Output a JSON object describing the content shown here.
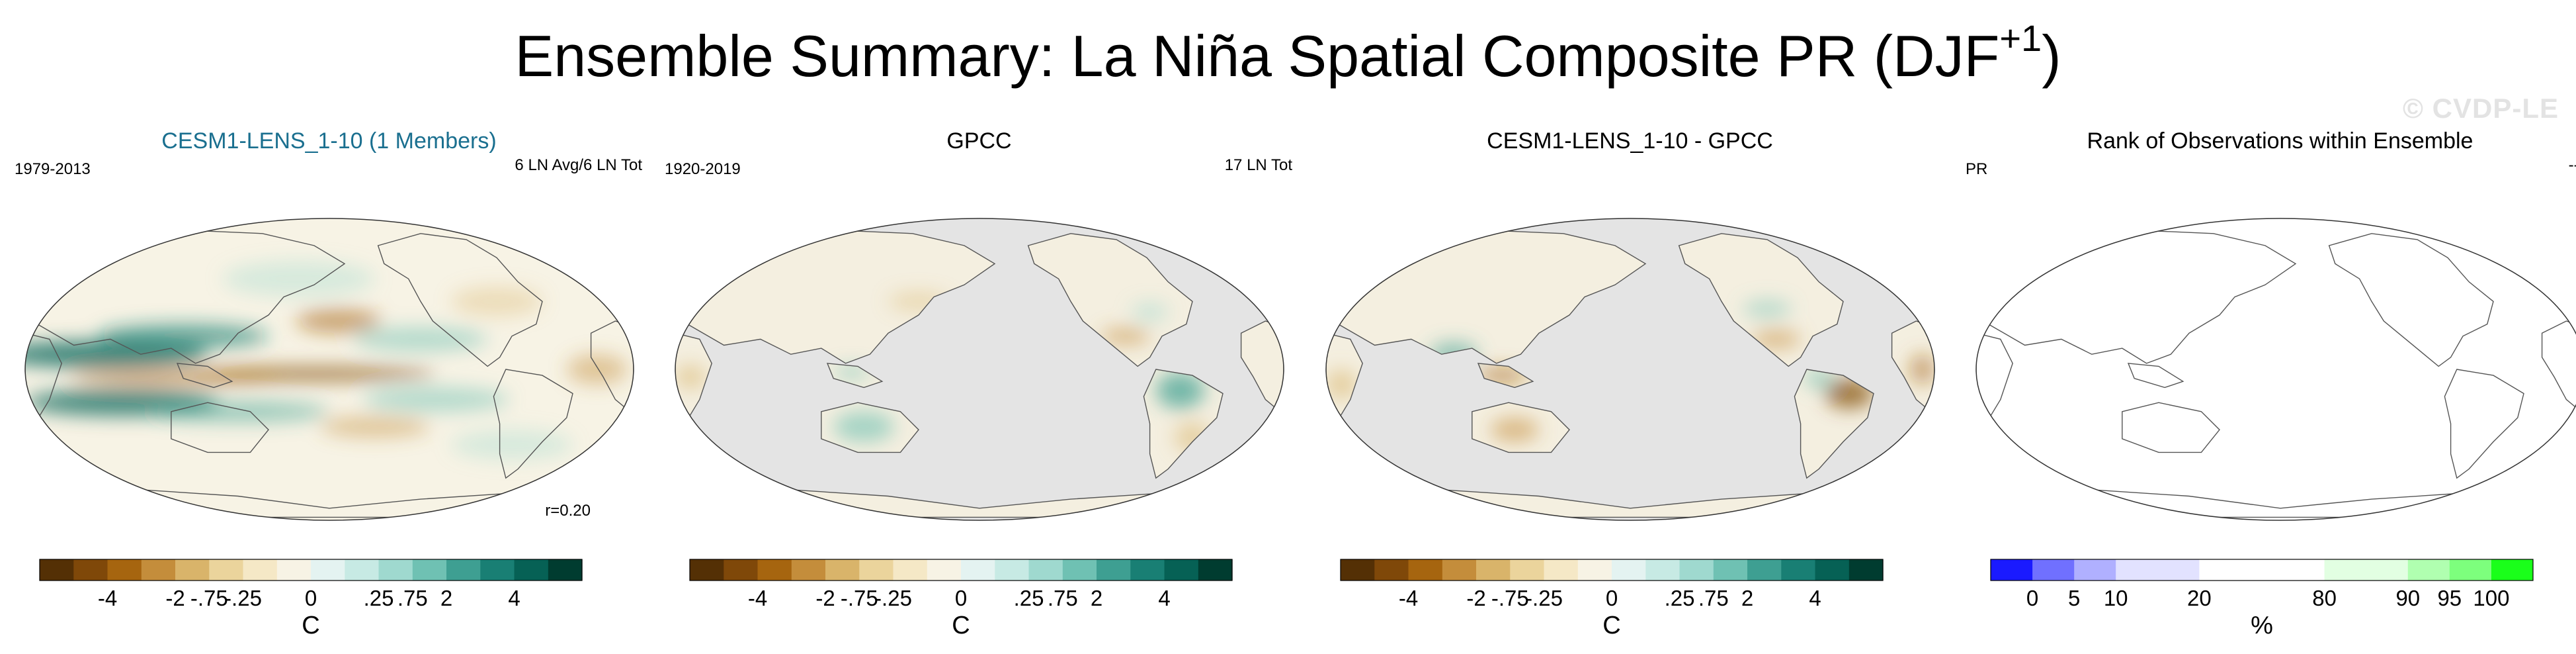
{
  "header": {
    "title_main": "Ensemble Summary: La Niña Spatial Composite PR (DJF",
    "title_sup": "+1",
    "title_end": ")",
    "watermark": "© CVDP-LE"
  },
  "colors": {
    "model_title": "#1a6f8f",
    "land_mask": "#e4e4e4",
    "coast": "#555555"
  },
  "panels": [
    {
      "title": "CESM1-LENS_1-10 (1 Members)",
      "left_label": "1979-2013",
      "right_label": "6 LN Avg/6 LN Tot",
      "corr_label": "r=0.20"
    },
    {
      "title": "GPCC",
      "left_label": "1920-2019",
      "right_label": "17 LN Tot"
    },
    {
      "title": "CESM1-LENS_1-10 - GPCC",
      "left_label": "",
      "right_label": ""
    },
    {
      "title": "Rank of Observations within Ensemble",
      "left_label": "PR",
      "right_label": "--%"
    }
  ],
  "chart_data": [
    {
      "type": "heatmap",
      "title": "CESM1-LENS_1-10 (1 Members)",
      "subtitle_left": "1979-2013",
      "subtitle_right": "6 LN Avg/6 LN Tot",
      "annotation": "r=0.20",
      "projection": "Robinson, Pacific-centered global map",
      "field": "PR composite anomaly during La Niña (DJF+1)",
      "colorbar": {
        "unit": "C",
        "tick_labels": [
          "-4",
          "-2",
          "-.75",
          "-.25",
          "0",
          ".25",
          ".75",
          "2",
          "4"
        ],
        "palette": [
          "#543005",
          "#7f4809",
          "#a6650f",
          "#c48d3b",
          "#d9b46a",
          "#ebd49c",
          "#f5e8c6",
          "#f7f3e5",
          "#e4f3f1",
          "#c7eae4",
          "#9fd9cf",
          "#6fc1b3",
          "#3e9f92",
          "#197f74",
          "#066155",
          "#003c30"
        ]
      },
      "features": [
        "strong dry (brown) tongue along the equatorial central/east Pacific",
        "wet (teal) bands north and south of the equator in the west Pacific",
        "wet anomaly over the Maritime Continent"
      ]
    },
    {
      "type": "heatmap",
      "title": "GPCC",
      "subtitle_left": "1920-2019",
      "subtitle_right": "17 LN Tot",
      "projection": "Robinson, Pacific-centered global map, land only (ocean masked gray)",
      "field": "PR composite anomaly during La Niña (DJF+1)",
      "colorbar": {
        "unit": "C",
        "tick_labels": [
          "-4",
          "-2",
          "-.75",
          "-.25",
          "0",
          ".25",
          ".75",
          "2",
          "4"
        ]
      },
      "features": [
        "wet over northern South America and Australia",
        "dry over southern US and East Africa"
      ]
    },
    {
      "type": "heatmap",
      "title": "CESM1-LENS_1-10 - GPCC",
      "projection": "Robinson, Pacific-centered global map, land only (ocean masked gray)",
      "field": "PR composite difference (model minus observations)",
      "colorbar": {
        "unit": "C",
        "tick_labels": [
          "-4",
          "-2",
          "-.75",
          "-.25",
          "0",
          ".25",
          ".75",
          "2",
          "4"
        ]
      }
    },
    {
      "type": "heatmap",
      "title": "Rank of Observations within Ensemble",
      "subtitle_left": "PR",
      "subtitle_right": "--%",
      "projection": "Robinson, Pacific-centered global map (empty, coastlines only)",
      "colorbar": {
        "unit": "%",
        "tick_labels": [
          "0",
          "5",
          "10",
          "20",
          "80",
          "90",
          "95",
          "100"
        ],
        "boundaries": [
          0,
          5,
          10,
          20,
          80,
          90,
          95,
          100
        ],
        "palette": [
          "#1a1aff",
          "#7070ff",
          "#b0b0ff",
          "#e2e2ff",
          "#ffffff",
          "#e2ffe2",
          "#b0ffb0",
          "#7dff7d",
          "#1aff1a"
        ]
      }
    }
  ]
}
